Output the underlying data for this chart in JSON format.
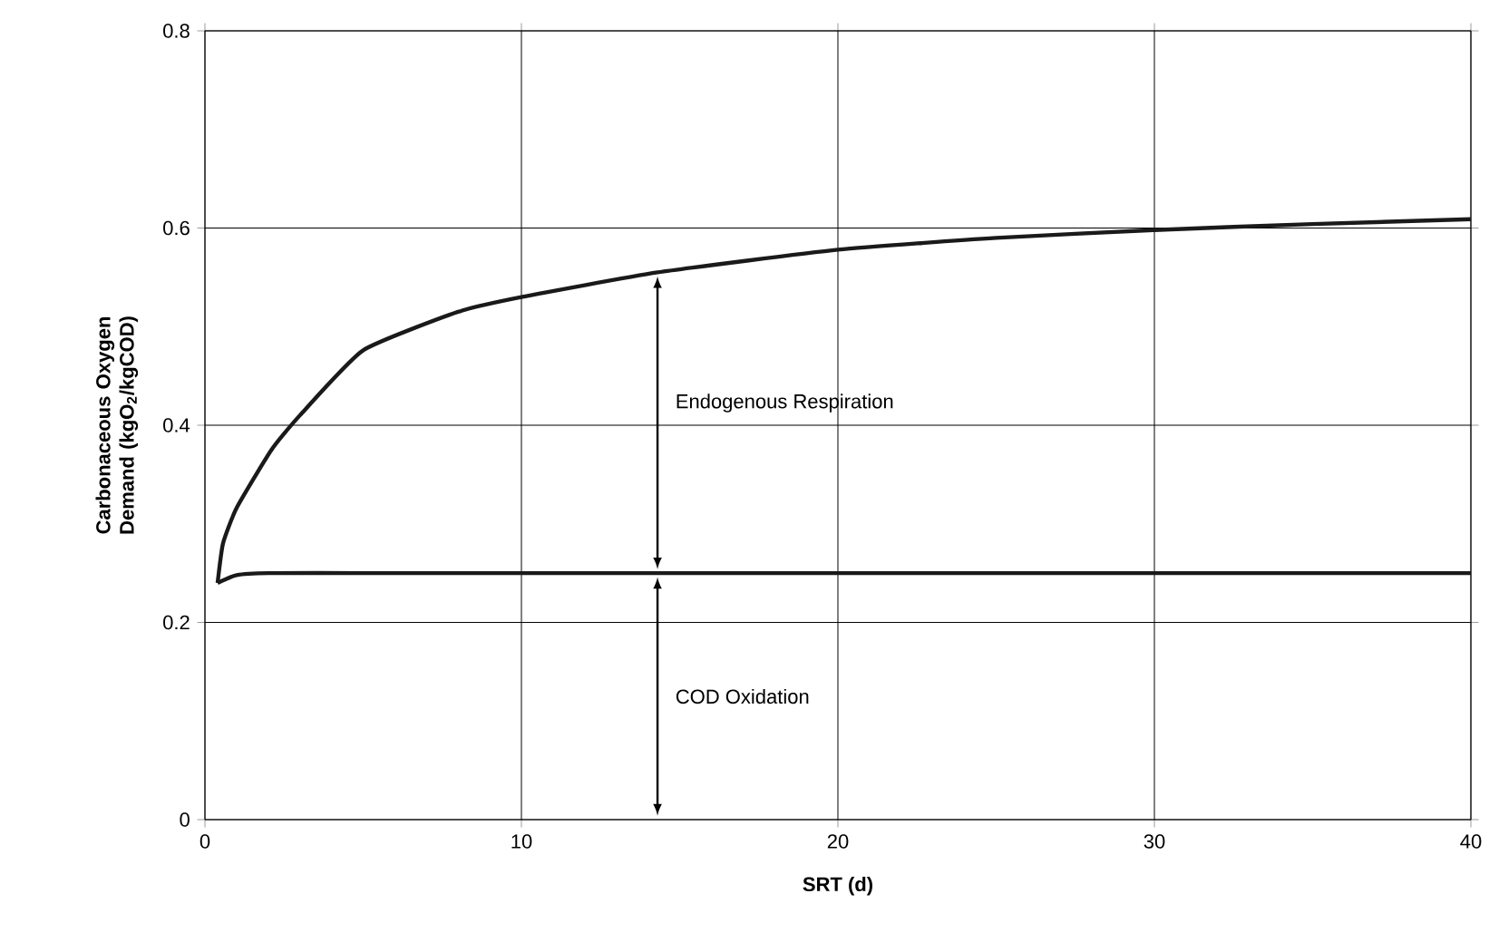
{
  "chart_data": {
    "type": "line",
    "xlabel": "SRT (d)",
    "ylabel": "Carbonaceous Oxygen Demand (kgO$_{2}$/kgCOD)",
    "series": [
      {
        "color": "#1a1a1a",
        "x": [
          0.4,
          0.57,
          1,
          2.1,
          3,
          5,
          8,
          10,
          14.3,
          20,
          25,
          30,
          35,
          40
        ],
        "values": [
          0.24,
          0.28,
          0.316,
          0.375,
          0.41,
          0.476,
          0.515,
          0.53,
          0.555,
          0.578,
          0.59,
          0.598,
          0.604,
          0.609
        ]
      },
      {
        "color": "#1a1a1a",
        "x": [
          0.4,
          1,
          2,
          5,
          10,
          14.3,
          20,
          30,
          40
        ],
        "values": [
          0.24,
          0.248,
          0.25,
          0.25,
          0.25,
          0.25,
          0.25,
          0.25,
          0.25
        ]
      }
    ],
    "annotations": [
      "Endogenous Respiration",
      "COD Oxidation"
    ],
    "xlim": [
      0,
      40
    ],
    "ylim": [
      0,
      0.8
    ],
    "xticks": [
      0,
      10,
      20,
      30,
      40
    ],
    "yticks": [
      0,
      0.2,
      0.4,
      0.6,
      0.8
    ],
    "grid": true
  }
}
